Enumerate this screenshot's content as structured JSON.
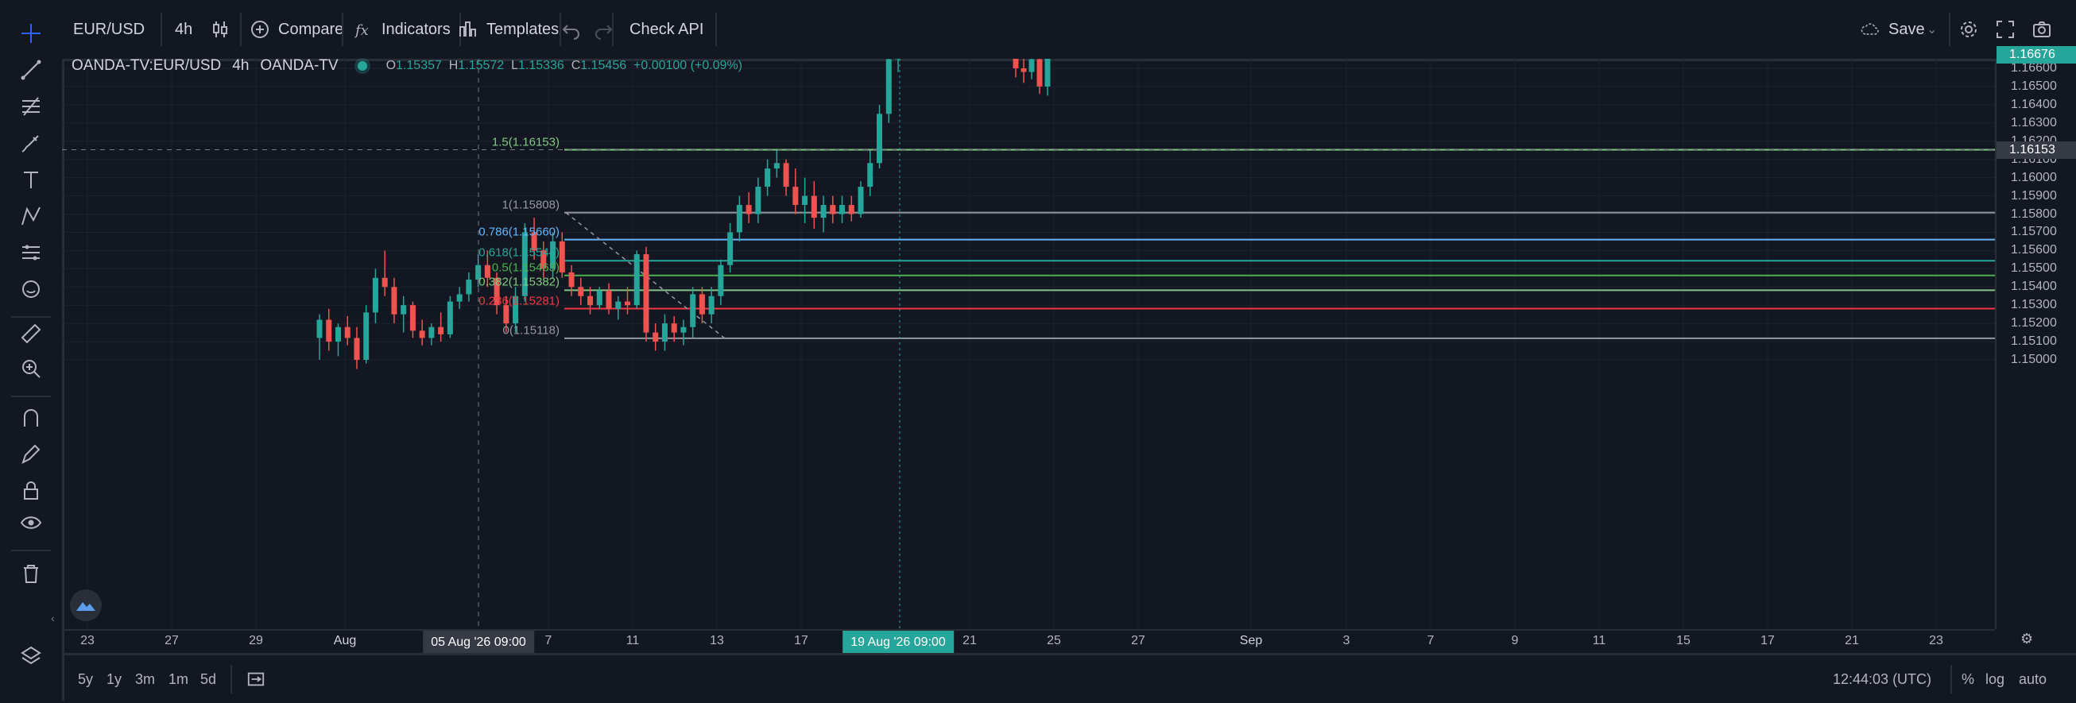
{
  "toolbar": {
    "symbol": "EUR/USD",
    "interval": "4h",
    "compare": "Compare",
    "indicators": "Indicators",
    "templates": "Templates",
    "check_api": "Check API",
    "save": "Save"
  },
  "legend": {
    "title": "OANDA-TV:EUR/USD",
    "interval": "4h",
    "source": "OANDA-TV",
    "o_label": "O",
    "o": "1.15357",
    "h_label": "H",
    "h": "1.15572",
    "l_label": "L",
    "l": "1.15336",
    "c_label": "C",
    "c": "1.15456",
    "change": "+0.00100 (+0.09%)"
  },
  "price_axis": {
    "labels": [
      "1.16600",
      "1.16500",
      "1.16400",
      "1.16300",
      "1.16200",
      "1.16100",
      "1.16000",
      "1.15900",
      "1.15800",
      "1.15700",
      "1.15600",
      "1.15500",
      "1.15400",
      "1.15300",
      "1.15200",
      "1.15100",
      "1.15000"
    ],
    "last_price": "1.16676",
    "crosshair_price": "1.16153"
  },
  "time_axis": {
    "labels": [
      "23",
      "27",
      "29",
      "Aug",
      "7",
      "11",
      "13",
      "17",
      "21",
      "25",
      "27",
      "Sep",
      "3",
      "7",
      "9",
      "11",
      "15",
      "17",
      "21",
      "23"
    ],
    "crosshair_time": "05 Aug '26   09:00",
    "highlight_time": "19 Aug '26   09:00"
  },
  "fib_levels": [
    {
      "label": "1.5(1.16153)",
      "value": 1.16153,
      "color": "#81c784"
    },
    {
      "label": "1(1.15808)",
      "value": 1.15808,
      "color": "#9598a1"
    },
    {
      "label": "0.786(1.15660)",
      "value": 1.1566,
      "color": "#64b5f6"
    },
    {
      "label": "0.618(1.15544)",
      "value": 1.15544,
      "color": "#26a69a"
    },
    {
      "label": "0.5(1.15463)",
      "value": 1.15463,
      "color": "#4caf50"
    },
    {
      "label": "0.382(1.15382)",
      "value": 1.15382,
      "color": "#81c784"
    },
    {
      "label": "0.236(1.15281)",
      "value": 1.15281,
      "color": "#f23645"
    },
    {
      "label": "0(1.15118)",
      "value": 1.15118,
      "color": "#9598a1"
    }
  ],
  "bottom_bar": {
    "ranges": [
      "5y",
      "1y",
      "3m",
      "1m",
      "5d"
    ],
    "clock": "12:44:03 (UTC)",
    "percent": "%",
    "log": "log",
    "auto": "auto"
  },
  "colors": {
    "up": "#26a69a",
    "down": "#ef5350",
    "background": "#131722",
    "grid": "#1e222d"
  },
  "chart_data": {
    "type": "candlestick",
    "title": "",
    "ylim": [
      1.1495,
      1.1675
    ],
    "series": [
      {
        "ohlc": [
          [
            1.1512,
            1.1525,
            1.15,
            1.1522
          ],
          [
            1.1522,
            1.1528,
            1.1505,
            1.151
          ],
          [
            1.151,
            1.152,
            1.1502,
            1.1518
          ],
          [
            1.1518,
            1.1524,
            1.1508,
            1.1512
          ],
          [
            1.1512,
            1.1518,
            1.1495,
            1.15
          ],
          [
            1.15,
            1.153,
            1.1498,
            1.1526
          ],
          [
            1.1526,
            1.155,
            1.152,
            1.1545
          ],
          [
            1.1545,
            1.156,
            1.1535,
            1.154
          ],
          [
            1.154,
            1.1545,
            1.152,
            1.1525
          ],
          [
            1.1525,
            1.1535,
            1.1515,
            1.153
          ],
          [
            1.153,
            1.1532,
            1.1512,
            1.1516
          ],
          [
            1.1516,
            1.1522,
            1.1508,
            1.1512
          ],
          [
            1.1512,
            1.152,
            1.1508,
            1.1518
          ],
          [
            1.1518,
            1.1526,
            1.151,
            1.1514
          ],
          [
            1.1514,
            1.1535,
            1.1512,
            1.1532
          ],
          [
            1.1532,
            1.154,
            1.1528,
            1.1536
          ],
          [
            1.1536,
            1.1548,
            1.1532,
            1.1544
          ],
          [
            1.1544,
            1.1558,
            1.154,
            1.1552
          ],
          [
            1.1552,
            1.156,
            1.154,
            1.1545
          ],
          [
            1.1545,
            1.1548,
            1.1525,
            1.153
          ],
          [
            1.153,
            1.1535,
            1.1515,
            1.152
          ],
          [
            1.152,
            1.154,
            1.1515,
            1.1535
          ],
          [
            1.1535,
            1.1575,
            1.1532,
            1.157
          ],
          [
            1.157,
            1.1578,
            1.1555,
            1.156
          ],
          [
            1.156,
            1.1565,
            1.1545,
            1.155
          ],
          [
            1.155,
            1.157,
            1.1545,
            1.1565
          ],
          [
            1.1565,
            1.157,
            1.1545,
            1.1548
          ],
          [
            1.1548,
            1.1552,
            1.1535,
            1.154
          ],
          [
            1.154,
            1.1545,
            1.153,
            1.1535
          ],
          [
            1.1535,
            1.154,
            1.1525,
            1.153
          ],
          [
            1.153,
            1.154,
            1.1528,
            1.1538
          ],
          [
            1.1538,
            1.1542,
            1.1525,
            1.1528
          ],
          [
            1.1528,
            1.1535,
            1.1522,
            1.1532
          ],
          [
            1.1532,
            1.154,
            1.1525,
            1.153
          ],
          [
            1.153,
            1.156,
            1.1528,
            1.1558
          ],
          [
            1.1558,
            1.1562,
            1.151,
            1.1515
          ],
          [
            1.1515,
            1.152,
            1.1505,
            1.151
          ],
          [
            1.151,
            1.1525,
            1.1505,
            1.152
          ],
          [
            1.152,
            1.1524,
            1.151,
            1.1515
          ],
          [
            1.1515,
            1.1522,
            1.1508,
            1.1518
          ],
          [
            1.1518,
            1.154,
            1.1512,
            1.1536
          ],
          [
            1.1536,
            1.154,
            1.152,
            1.1525
          ],
          [
            1.1525,
            1.154,
            1.152,
            1.1535
          ],
          [
            1.1535,
            1.1555,
            1.153,
            1.1552
          ],
          [
            1.1552,
            1.1575,
            1.1548,
            1.157
          ],
          [
            1.157,
            1.159,
            1.1565,
            1.1585
          ],
          [
            1.1585,
            1.1592,
            1.1575,
            1.158
          ],
          [
            1.158,
            1.16,
            1.1575,
            1.1595
          ],
          [
            1.1595,
            1.161,
            1.159,
            1.1605
          ],
          [
            1.1605,
            1.1615,
            1.16,
            1.1608
          ],
          [
            1.1608,
            1.161,
            1.159,
            1.1595
          ],
          [
            1.1595,
            1.1605,
            1.158,
            1.1585
          ],
          [
            1.1585,
            1.16,
            1.1575,
            1.159
          ],
          [
            1.159,
            1.1598,
            1.1572,
            1.1578
          ],
          [
            1.1578,
            1.159,
            1.157,
            1.1585
          ],
          [
            1.1585,
            1.159,
            1.1575,
            1.158
          ],
          [
            1.158,
            1.159,
            1.1575,
            1.1585
          ],
          [
            1.1585,
            1.159,
            1.1576,
            1.158
          ],
          [
            1.158,
            1.1598,
            1.1578,
            1.1595
          ],
          [
            1.1595,
            1.1615,
            1.159,
            1.1608
          ],
          [
            1.1608,
            1.164,
            1.1605,
            1.1635
          ],
          [
            1.1635,
            1.1668,
            1.163,
            1.1665
          ],
          [
            1.1665,
            1.167,
            1.1658,
            1.1668
          ]
        ],
        "extra_candles": [
          [
            1.1668,
            1.1672,
            1.1655,
            1.166
          ],
          [
            1.166,
            1.1668,
            1.1652,
            1.1658
          ],
          [
            1.1658,
            1.1668,
            1.1654,
            1.1665
          ],
          [
            1.1665,
            1.167,
            1.1646,
            1.165
          ],
          [
            1.165,
            1.167,
            1.1645,
            1.16676
          ]
        ]
      }
    ]
  }
}
